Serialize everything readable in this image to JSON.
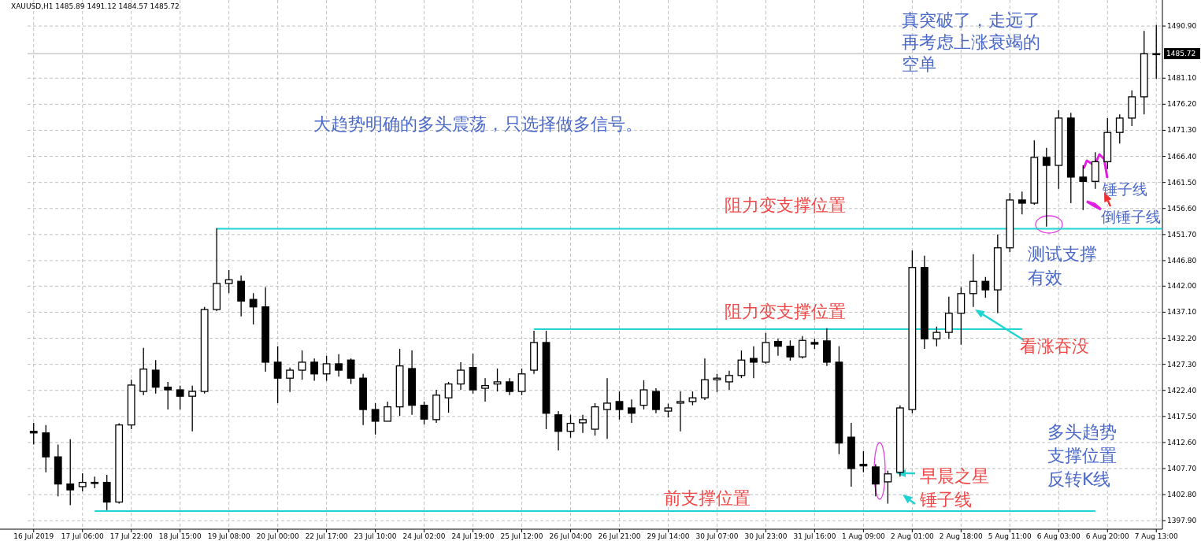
{
  "chart_data": {
    "type": "candlestick",
    "title": "XAUUSD,H1  1485.89 1491.12 1484.57 1485.72",
    "categories": [
      "16 Jul 2019",
      null,
      null,
      null,
      "17 Jul 06:00",
      null,
      null,
      null,
      "17 Jul 22:00",
      null,
      null,
      null,
      "18 Jul 15:00",
      null,
      null,
      null,
      "19 Jul 08:00",
      null,
      null,
      null,
      "20 Jul 00:00",
      null,
      null,
      null,
      "22 Jul 17:00",
      null,
      null,
      null,
      "23 Jul 10:00",
      null,
      null,
      null,
      "24 Jul 02:00",
      null,
      null,
      null,
      "24 Jul 19:00",
      null,
      null,
      null,
      "25 Jul 12:00",
      null,
      null,
      null,
      "26 Jul 04:00",
      null,
      null,
      null,
      "26 Jul 21:00",
      null,
      null,
      null,
      "29 Jul 14:00",
      null,
      null,
      null,
      "30 Jul 07:00",
      null,
      null,
      null,
      "30 Jul 23:00",
      null,
      null,
      null,
      "31 Jul 16:00",
      null,
      null,
      null,
      "1 Aug 09:00",
      null,
      null,
      null,
      "2 Aug 01:00",
      null,
      null,
      null,
      "2 Aug 18:00",
      null,
      null,
      null,
      "5 Aug 11:00",
      null,
      null,
      null,
      "6 Aug 03:00",
      null,
      null,
      null,
      "6 Aug 20:00",
      null,
      null,
      null,
      "7 Aug 13:00"
    ],
    "ohlc": [
      [
        1414.7,
        1416.3,
        1412.2,
        1414.4
      ],
      [
        1414.4,
        1415.9,
        1407.0,
        1409.9
      ],
      [
        1409.9,
        1412.2,
        1402.5,
        1404.8
      ],
      [
        1404.8,
        1413.2,
        1400.8,
        1403.7
      ],
      [
        1404.3,
        1406.8,
        1403.4,
        1405.1
      ],
      [
        1405.1,
        1406.2,
        1404.0,
        1404.9
      ],
      [
        1405.1,
        1406.5,
        1399.9,
        1401.4
      ],
      [
        1401.4,
        1416.2,
        1401.1,
        1415.9
      ],
      [
        1415.9,
        1424.4,
        1415.1,
        1423.4
      ],
      [
        1422.2,
        1430.4,
        1421.5,
        1426.4
      ],
      [
        1426.2,
        1428.1,
        1421.8,
        1423.0
      ],
      [
        1423.0,
        1424.0,
        1418.8,
        1422.5
      ],
      [
        1422.5,
        1423.3,
        1418.8,
        1421.3
      ],
      [
        1421.3,
        1423.3,
        1414.7,
        1422.2
      ],
      [
        1422.2,
        1438.1,
        1421.8,
        1437.6
      ],
      [
        1437.6,
        1452.9,
        1437.3,
        1442.5
      ],
      [
        1442.5,
        1445.0,
        1440.7,
        1443.2
      ],
      [
        1442.9,
        1444.0,
        1436.3,
        1439.2
      ],
      [
        1439.5,
        1440.7,
        1434.8,
        1438.1
      ],
      [
        1438.1,
        1441.8,
        1425.9,
        1427.7
      ],
      [
        1427.7,
        1430.7,
        1420.0,
        1424.7
      ],
      [
        1424.7,
        1426.7,
        1422.1,
        1426.2
      ],
      [
        1426.2,
        1429.9,
        1424.4,
        1427.7
      ],
      [
        1427.7,
        1428.4,
        1424.2,
        1425.5
      ],
      [
        1425.5,
        1428.9,
        1424.2,
        1427.4
      ],
      [
        1427.4,
        1429.2,
        1425.0,
        1426.2
      ],
      [
        1428.1,
        1428.4,
        1423.6,
        1424.7
      ],
      [
        1424.7,
        1425.5,
        1415.9,
        1418.8
      ],
      [
        1418.8,
        1420.0,
        1414.1,
        1416.6
      ],
      [
        1416.6,
        1420.3,
        1416.6,
        1419.3
      ],
      [
        1419.3,
        1430.2,
        1417.6,
        1427.0
      ],
      [
        1426.5,
        1429.9,
        1417.8,
        1419.6
      ],
      [
        1419.6,
        1420.3,
        1416.0,
        1417.0
      ],
      [
        1416.9,
        1422.5,
        1416.3,
        1421.5
      ],
      [
        1421.0,
        1424.0,
        1418.2,
        1423.6
      ],
      [
        1423.6,
        1427.7,
        1422.5,
        1426.2
      ],
      [
        1426.7,
        1429.3,
        1421.8,
        1422.5
      ],
      [
        1422.8,
        1424.7,
        1420.3,
        1423.3
      ],
      [
        1423.6,
        1426.5,
        1422.2,
        1424.0
      ],
      [
        1424.0,
        1424.7,
        1421.5,
        1422.2
      ],
      [
        1422.2,
        1426.5,
        1421.5,
        1425.5
      ],
      [
        1426.2,
        1433.6,
        1425.5,
        1431.4
      ],
      [
        1431.4,
        1433.6,
        1415.1,
        1418.1
      ],
      [
        1417.8,
        1418.5,
        1411.1,
        1414.7
      ],
      [
        1414.7,
        1417.8,
        1413.5,
        1416.2
      ],
      [
        1416.3,
        1417.8,
        1414.4,
        1416.9
      ],
      [
        1415.1,
        1420.0,
        1413.9,
        1419.3
      ],
      [
        1418.8,
        1424.7,
        1413.3,
        1420.0
      ],
      [
        1420.3,
        1422.2,
        1416.9,
        1418.8
      ],
      [
        1419.1,
        1420.7,
        1416.3,
        1418.1
      ],
      [
        1419.6,
        1424.3,
        1418.8,
        1422.5
      ],
      [
        1422.2,
        1422.8,
        1418.1,
        1418.8
      ],
      [
        1418.5,
        1419.9,
        1417.3,
        1419.1
      ],
      [
        1420.0,
        1422.2,
        1414.7,
        1420.3
      ],
      [
        1420.3,
        1422.2,
        1419.6,
        1421.0
      ],
      [
        1421.0,
        1428.4,
        1420.6,
        1424.4
      ],
      [
        1424.4,
        1425.5,
        1422.1,
        1424.7
      ],
      [
        1424.0,
        1426.1,
        1422.5,
        1425.2
      ],
      [
        1425.2,
        1429.9,
        1424.7,
        1428.1
      ],
      [
        1428.4,
        1430.7,
        1424.7,
        1427.7
      ],
      [
        1427.7,
        1433.2,
        1427.4,
        1431.4
      ],
      [
        1431.6,
        1432.1,
        1428.9,
        1430.7
      ],
      [
        1430.7,
        1431.8,
        1428.0,
        1428.7
      ],
      [
        1428.7,
        1432.6,
        1428.4,
        1431.8
      ],
      [
        1431.4,
        1432.1,
        1430.2,
        1431.1
      ],
      [
        1431.7,
        1434.1,
        1427.0,
        1427.7
      ],
      [
        1427.7,
        1430.7,
        1410.4,
        1412.5
      ],
      [
        1413.6,
        1416.3,
        1404.3,
        1407.7
      ],
      [
        1408.5,
        1411.0,
        1407.0,
        1408.2
      ],
      [
        1408.0,
        1408.5,
        1402.5,
        1404.8
      ],
      [
        1405.2,
        1407.3,
        1401.1,
        1406.7
      ],
      [
        1407.0,
        1419.6,
        1406.2,
        1419.1
      ],
      [
        1418.8,
        1448.7,
        1418.1,
        1445.5
      ],
      [
        1445.5,
        1447.7,
        1430.2,
        1432.1
      ],
      [
        1432.1,
        1434.4,
        1430.7,
        1433.3
      ],
      [
        1433.3,
        1440.0,
        1432.1,
        1436.9
      ],
      [
        1436.9,
        1441.8,
        1431.0,
        1440.6
      ],
      [
        1440.6,
        1448.0,
        1438.1,
        1442.9
      ],
      [
        1442.9,
        1443.7,
        1439.8,
        1441.3
      ],
      [
        1441.3,
        1451.7,
        1436.9,
        1449.2
      ],
      [
        1449.2,
        1459.5,
        1448.4,
        1458.2
      ],
      [
        1458.2,
        1459.8,
        1455.5,
        1457.6
      ],
      [
        1457.6,
        1469.4,
        1457.3,
        1466.2
      ],
      [
        1466.2,
        1468.0,
        1453.2,
        1464.7
      ],
      [
        1464.7,
        1475.1,
        1460.3,
        1473.6
      ],
      [
        1473.6,
        1474.6,
        1457.6,
        1462.5
      ],
      [
        1462.5,
        1464.7,
        1456.3,
        1461.7
      ],
      [
        1461.7,
        1467.2,
        1460.3,
        1465.4
      ],
      [
        1465.4,
        1473.6,
        1464.0,
        1470.9
      ],
      [
        1470.9,
        1474.3,
        1468.8,
        1473.6
      ],
      [
        1473.6,
        1478.8,
        1472.1,
        1477.6
      ],
      [
        1477.6,
        1490.0,
        1474.3,
        1485.7
      ],
      [
        1485.7,
        1491.1,
        1481.0,
        1485.7
      ]
    ],
    "ylim": [
      1396.3,
      1495.8
    ],
    "yticks": [
      {
        "value": 1397.9,
        "label": "1397.90"
      },
      {
        "value": 1402.8,
        "label": "1402.80"
      },
      {
        "value": 1407.7,
        "label": "1407.70"
      },
      {
        "value": 1412.6,
        "label": "1412.60"
      },
      {
        "value": 1417.5,
        "label": "1417.50"
      },
      {
        "value": 1422.4,
        "label": "1422.40"
      },
      {
        "value": 1427.3,
        "label": "1427.30"
      },
      {
        "value": 1432.2,
        "label": "1432.20"
      },
      {
        "value": 1437.1,
        "label": "1437.10"
      },
      {
        "value": 1442.0,
        "label": "1442.00"
      },
      {
        "value": 1446.8,
        "label": "1446.80"
      },
      {
        "value": 1451.7,
        "label": "1451.70"
      },
      {
        "value": 1456.6,
        "label": "1456.60"
      },
      {
        "value": 1461.5,
        "label": "1461.50"
      },
      {
        "value": 1466.4,
        "label": "1466.40"
      },
      {
        "value": 1471.3,
        "label": "1471.30"
      },
      {
        "value": 1476.2,
        "label": "1476.20"
      },
      {
        "value": 1481.1,
        "label": "1481.10"
      },
      {
        "value": 1490.9,
        "label": "1490.90"
      }
    ],
    "grid": true,
    "ref_lines": [
      {
        "axis": "y",
        "value": 1452.8,
        "label": "阻力变支撑位置",
        "color": "#22d3d3"
      },
      {
        "axis": "y",
        "value": 1433.9,
        "label": "阻力变支撑位置",
        "color": "#22d3d3"
      },
      {
        "axis": "y",
        "value": 1399.7,
        "label": "前支撑位置",
        "color": "#22d3d3"
      },
      {
        "axis": "y",
        "value": 1485.72,
        "label": "1485.72",
        "color": "#b0b0b0"
      }
    ],
    "annotations": [
      "真突破了，走远了再考虑上涨衰竭的空单",
      "大趋势明确的多头震荡，只选择做多信号。",
      "看涨吞没",
      "测试支撑有效",
      "锤子线",
      "倒锤子线",
      "多头趋势支撑位置反转K线",
      "早晨之星",
      "锤子线"
    ]
  }
}
